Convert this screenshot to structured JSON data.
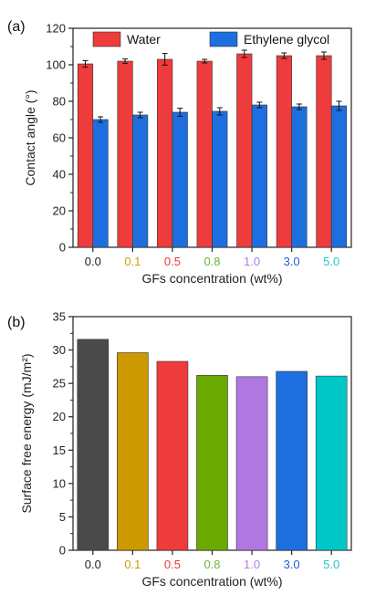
{
  "chart_data": [
    {
      "type": "bar",
      "panel_label": "(a)",
      "categories": [
        "0.0",
        "0.1",
        "0.5",
        "0.8",
        "1.0",
        "3.0",
        "5.0"
      ],
      "category_colors": [
        "#222222",
        "#c8a000",
        "#e8393c",
        "#6db33f",
        "#b07fe0",
        "#1f5fd6",
        "#27c3c8"
      ],
      "xlabel": "GFs concentration (wt%)",
      "ylabel": "Contact angle (°)",
      "ylim": [
        0,
        120
      ],
      "yticks": [
        0,
        20,
        40,
        60,
        80,
        100,
        120
      ],
      "legend_position": "top",
      "series": [
        {
          "name": "Water",
          "color": "#ee3b3b",
          "values": [
            100.5,
            102,
            103,
            102,
            106,
            105,
            105
          ],
          "errors": [
            1.8,
            1.2,
            3.2,
            1.0,
            2.0,
            1.5,
            2.0
          ]
        },
        {
          "name": "Ethylene glycol",
          "color": "#1d6fe0",
          "values": [
            70,
            72.5,
            74,
            74.5,
            78,
            77,
            77.5
          ],
          "errors": [
            1.5,
            1.5,
            2.2,
            2.0,
            1.5,
            1.5,
            2.5
          ]
        }
      ]
    },
    {
      "type": "bar",
      "panel_label": "(b)",
      "categories": [
        "0.0",
        "0.1",
        "0.5",
        "0.8",
        "1.0",
        "3.0",
        "5.0"
      ],
      "category_colors": [
        "#222222",
        "#c8a000",
        "#e8393c",
        "#6db33f",
        "#b07fe0",
        "#1f5fd6",
        "#27c3c8"
      ],
      "bar_colors": [
        "#4a4a4a",
        "#cc9900",
        "#ee3b3b",
        "#6aaa00",
        "#b177e0",
        "#1d6fe0",
        "#00c8c8"
      ],
      "xlabel": "GFs concentration (wt%)",
      "ylabel": "Surface free energy (mJ/m²)",
      "ylim": [
        0,
        35
      ],
      "yticks": [
        0,
        5,
        10,
        15,
        20,
        25,
        30,
        35
      ],
      "values": [
        31.6,
        29.6,
        28.3,
        26.2,
        26.0,
        26.8,
        26.1
      ]
    }
  ]
}
